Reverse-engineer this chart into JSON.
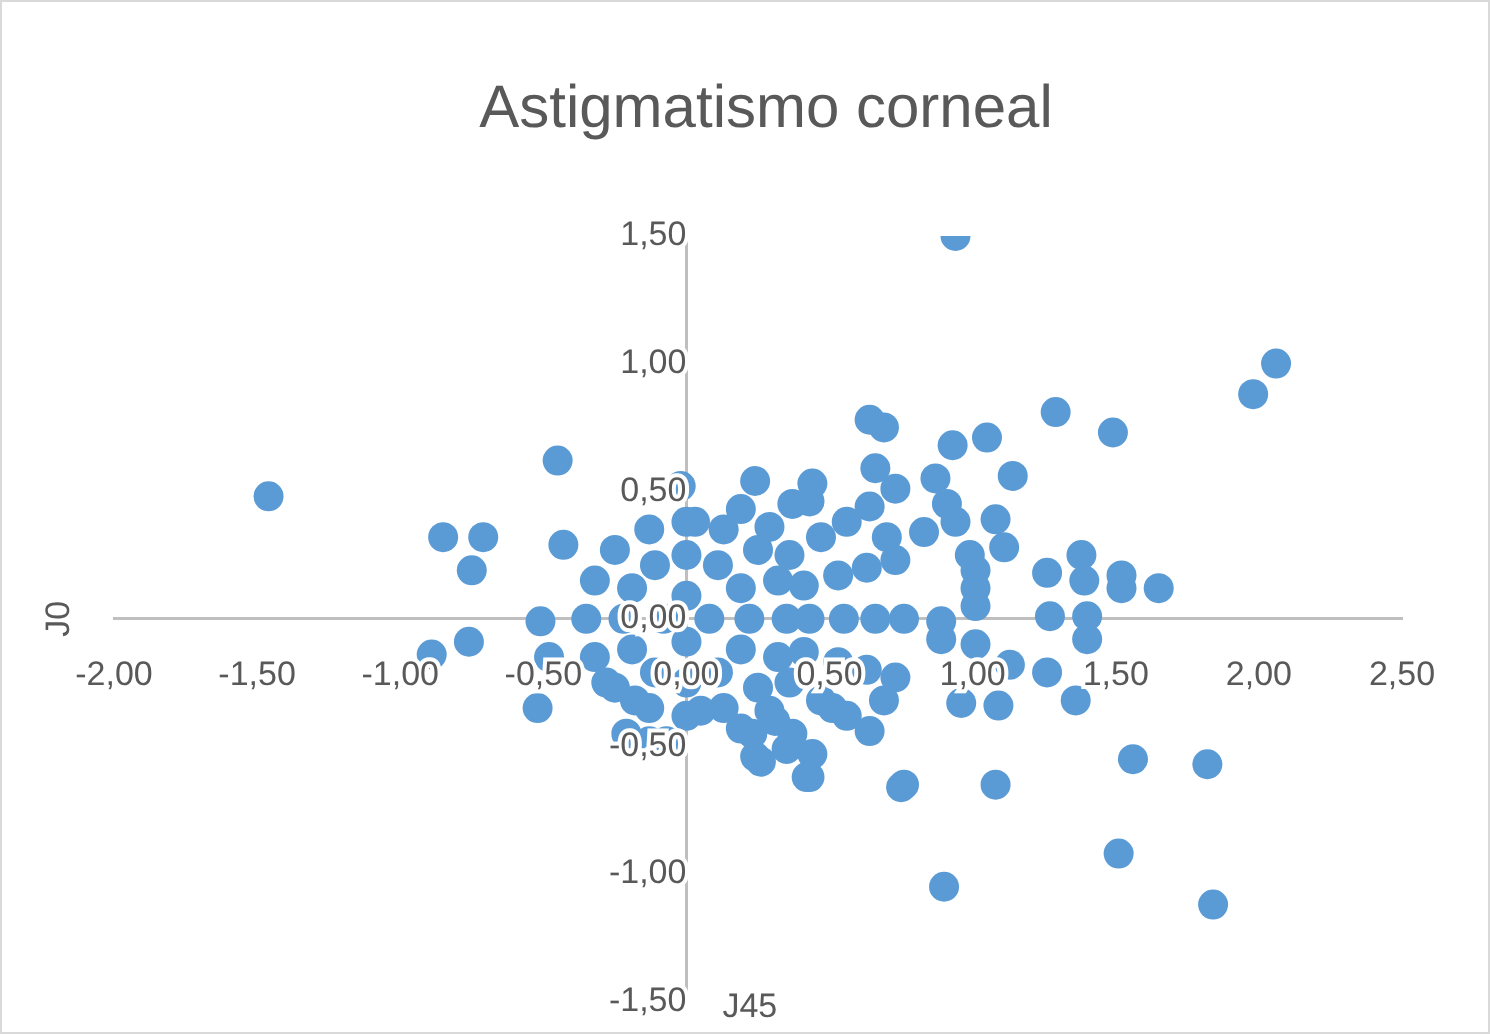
{
  "chart_data": {
    "type": "scatter",
    "title": "Astigmatismo corneal",
    "xlabel": "J45",
    "ylabel": "J0",
    "xlim": [
      -2,
      2.5
    ],
    "xticks": [
      {
        "value": -2,
        "label": "-2,00"
      },
      {
        "value": -1.5,
        "label": "-1,50"
      },
      {
        "value": -1,
        "label": "-1,00"
      },
      {
        "value": -0.5,
        "label": "-0,50"
      },
      {
        "value": 0,
        "label": "0,00"
      },
      {
        "value": 0.5,
        "label": "0,50"
      },
      {
        "value": 1,
        "label": "1,00"
      },
      {
        "value": 1.5,
        "label": "1,50"
      },
      {
        "value": 2,
        "label": "2,00"
      },
      {
        "value": 2.5,
        "label": "2,50"
      }
    ],
    "ylim": [
      -1.5,
      1.5
    ],
    "yticks": [
      {
        "value": -1.5,
        "label": "-1,50"
      },
      {
        "value": -1,
        "label": "-1,00"
      },
      {
        "value": -0.5,
        "label": "-0,50"
      },
      {
        "value": 0,
        "label": "0,00"
      },
      {
        "value": 0.5,
        "label": "0,50"
      },
      {
        "value": 1,
        "label": "1,00"
      },
      {
        "value": 1.5,
        "label": "1,50"
      }
    ],
    "grid": false,
    "legend": false,
    "marker": "circle",
    "series": [
      {
        "color": "#5b9bd5",
        "x": [
          0.94,
          2.06,
          1.98,
          1.29,
          1.49,
          0.64,
          0.69,
          0.93,
          1.05,
          0.66,
          0.73,
          0.87,
          1.14,
          0.91,
          0.94,
          0.7,
          0.83,
          1.08,
          1.11,
          0.99,
          1.01,
          1.01,
          1.01,
          1.26,
          1.38,
          1.39,
          1.52,
          1.52,
          1.65,
          1.27,
          1.4,
          1.4,
          0.89,
          0.89,
          1.01,
          1.13,
          1.26,
          0.96,
          1.09,
          1.36,
          0.69,
          0.76,
          1.08,
          1.56,
          1.82,
          1.51,
          1.84,
          0.9,
          0.43,
          0.51,
          -1.46,
          -0.85,
          -0.71,
          -0.75,
          -0.89,
          -0.76,
          -0.45,
          -0.43,
          -0.51,
          -0.52,
          -0.48,
          -0.02,
          0.03,
          0.43,
          -0.28,
          -0.18,
          -0.21,
          -0.13,
          -0.07,
          0.05,
          0.23,
          0.31,
          0.26,
          0.35,
          0.42,
          0.75,
          0.08,
          0,
          -0.08,
          0,
          0.22,
          0.19,
          0.11,
          0,
          -0.11,
          -0.19,
          -0.22,
          -0.19,
          -0.11,
          0,
          0.11,
          0.19,
          0.35,
          0.32,
          0.25,
          0.13,
          0,
          -0.13,
          -0.25,
          -0.32,
          -0.35,
          -0.32,
          -0.25,
          -0.13,
          0,
          0.13,
          0.25,
          0.32,
          0.43,
          0.41,
          0.41,
          0.36,
          0.36,
          0.29,
          0.29,
          0.19,
          0.19,
          0.55,
          0.53,
          0.53,
          0.47,
          0.47,
          0.37,
          0.37,
          0.24,
          0.24,
          0.66,
          0.63,
          0.63,
          0.56,
          0.56,
          0.44,
          0.44,
          0.76,
          0.73,
          0.73,
          0.64,
          0.64
        ],
        "values": [
          1.5,
          1.0,
          0.88,
          0.81,
          0.73,
          0.78,
          0.75,
          0.68,
          0.71,
          0.59,
          0.51,
          0.55,
          0.56,
          0.45,
          0.38,
          0.32,
          0.34,
          0.39,
          0.28,
          0.25,
          0.19,
          0.12,
          0.05,
          0.18,
          0.25,
          0.15,
          0.17,
          0.12,
          0.12,
          0.01,
          0.01,
          -0.08,
          -0.01,
          -0.08,
          -0.1,
          -0.18,
          -0.21,
          -0.33,
          -0.34,
          -0.32,
          -0.32,
          -0.65,
          -0.65,
          -0.55,
          -0.57,
          -0.92,
          -1.12,
          -1.05,
          -0.62,
          -0.35,
          0.48,
          0.32,
          0.32,
          0.19,
          -0.14,
          -0.09,
          0.62,
          0.29,
          -0.01,
          -0.35,
          -0.15,
          0.52,
          0.38,
          0.46,
          -0.25,
          -0.32,
          -0.45,
          -0.48,
          -0.48,
          -0.36,
          -0.45,
          -0.4,
          -0.56,
          -0.51,
          -0.62,
          -0.66,
          0,
          0.09,
          0,
          -0.09,
          0,
          0.12,
          0.21,
          0.25,
          0.21,
          0.12,
          0,
          -0.12,
          -0.21,
          -0.25,
          -0.21,
          -0.12,
          0,
          0.15,
          0.27,
          0.35,
          0.38,
          0.35,
          0.27,
          0.15,
          0,
          -0.15,
          -0.27,
          -0.35,
          -0.38,
          -0.35,
          -0.27,
          -0.15,
          0,
          0.13,
          -0.13,
          0.25,
          -0.25,
          0.36,
          -0.36,
          0.43,
          -0.43,
          0,
          0.17,
          -0.17,
          0.32,
          -0.32,
          0.45,
          -0.45,
          0.54,
          -0.54,
          0,
          0.2,
          -0.2,
          0.38,
          -0.38,
          0.53,
          -0.53,
          0,
          0.23,
          -0.23,
          0.44,
          -0.44
        ]
      }
    ]
  }
}
